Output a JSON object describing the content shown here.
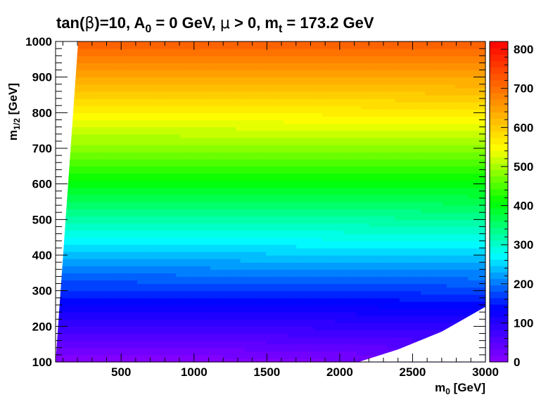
{
  "chart_data": {
    "type": "heatmap",
    "title": {
      "p1": "tan(",
      "p2": "β",
      "p3": ")=10, A",
      "p4": "0",
      "p5": " = 0 GeV, ",
      "p6": "μ",
      "p7": " > 0, m",
      "p8": "t",
      "p9": " = 173.2 GeV"
    },
    "xlabel": {
      "main": "m",
      "sub": "0",
      "unit": " [GeV]"
    },
    "ylabel": {
      "main": "m",
      "sub": "1/2",
      "unit": " [GeV]"
    },
    "xlim": [
      50,
      3000
    ],
    "ylim": [
      100,
      1000
    ],
    "zlim": [
      0,
      820
    ],
    "x_ticks": [
      500,
      1000,
      1500,
      2000,
      2500,
      3000
    ],
    "y_ticks": [
      100,
      200,
      300,
      400,
      500,
      600,
      700,
      800,
      900,
      1000
    ],
    "z_ticks": [
      0,
      100,
      200,
      300,
      400,
      500,
      600,
      700,
      800
    ],
    "z_contour_levels": 50,
    "palette": [
      "#8b00ff",
      "#0000ff",
      "#00ffff",
      "#00ff00",
      "#ffff00",
      "#ff7f00",
      "#ff0000"
    ],
    "left_excluded_boundary": [
      [
        50,
        100
      ],
      [
        205,
        1000
      ]
    ],
    "bottom_excluded_boundary": [
      [
        2130,
        100
      ],
      [
        2400,
        135
      ],
      [
        2700,
        185
      ],
      [
        3000,
        255
      ]
    ],
    "z_model": "z = 0.8*m12 + m0*m0/(2.8*m12*1000) - 80 (approximate)"
  }
}
